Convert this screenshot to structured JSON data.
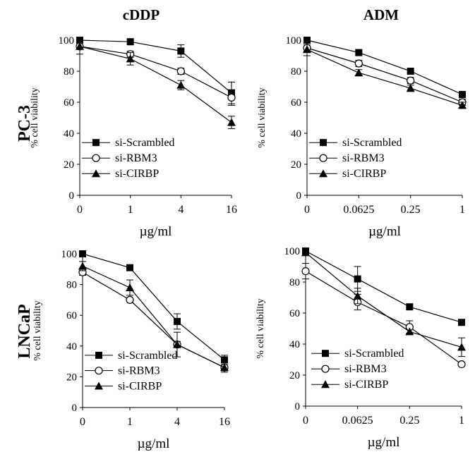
{
  "chart_data": [
    {
      "type": "line",
      "title": "cDDP",
      "row_label": "PC-3",
      "xlabel": "µg/ml",
      "ylabel": "% cell viability",
      "categories": [
        "0",
        "1",
        "4",
        "16"
      ],
      "ylim": [
        0,
        100
      ],
      "yticks": [
        0,
        20,
        40,
        60,
        80,
        100
      ],
      "legend": "bottom-left",
      "series": [
        {
          "name": "si-Scrambled",
          "marker": "square",
          "values": [
            100,
            99,
            93,
            66
          ],
          "errors": [
            1,
            1,
            4,
            7
          ]
        },
        {
          "name": "si-RBM3",
          "marker": "circle",
          "values": [
            96,
            91,
            80,
            63
          ],
          "errors": [
            1,
            2,
            2,
            5
          ]
        },
        {
          "name": "si-CIRBP",
          "marker": "triangle",
          "values": [
            96,
            88,
            71,
            47
          ],
          "errors": [
            5,
            4,
            3,
            4
          ]
        }
      ]
    },
    {
      "type": "line",
      "title": "ADM",
      "row_label": "",
      "xlabel": "µg/ml",
      "ylabel": "% cell viability",
      "categories": [
        "0",
        "0.0625",
        "0.25",
        "1"
      ],
      "ylim": [
        0,
        100
      ],
      "yticks": [
        0,
        20,
        40,
        60,
        80,
        100
      ],
      "legend": "bottom-left",
      "series": [
        {
          "name": "si-Scrambled",
          "marker": "square",
          "values": [
            100,
            92,
            80,
            65
          ],
          "errors": [
            1,
            1,
            1,
            1
          ]
        },
        {
          "name": "si-RBM3",
          "marker": "circle",
          "values": [
            95,
            85,
            74,
            60
          ],
          "errors": [
            2,
            2,
            2,
            2
          ]
        },
        {
          "name": "si-CIRBP",
          "marker": "triangle",
          "values": [
            94,
            79,
            69,
            58
          ],
          "errors": [
            4,
            2,
            2,
            2
          ]
        }
      ]
    },
    {
      "type": "line",
      "title": "",
      "row_label": "LNCaP",
      "xlabel": "µg/ml",
      "ylabel": "% cell viability",
      "categories": [
        "0",
        "1",
        "4",
        "16"
      ],
      "ylim": [
        0,
        100
      ],
      "yticks": [
        0,
        20,
        40,
        60,
        80,
        100
      ],
      "legend": "bottom-left",
      "series": [
        {
          "name": "si-Scrambled",
          "marker": "square",
          "values": [
            100,
            91,
            56,
            31
          ],
          "errors": [
            1,
            1,
            5,
            3
          ]
        },
        {
          "name": "si-RBM3",
          "marker": "circle",
          "values": [
            88,
            70,
            41,
            26
          ],
          "errors": [
            2,
            1,
            2,
            2
          ]
        },
        {
          "name": "si-CIRBP",
          "marker": "triangle",
          "values": [
            92,
            78,
            41,
            26
          ],
          "errors": [
            3,
            5,
            8,
            3
          ]
        }
      ]
    },
    {
      "type": "line",
      "title": "",
      "row_label": "",
      "xlabel": "µg/ml",
      "ylabel": "% cell viability",
      "categories": [
        "0",
        "0.0625",
        "0.25",
        "1"
      ],
      "ylim": [
        0,
        100
      ],
      "yticks": [
        0,
        20,
        40,
        60,
        80,
        100
      ],
      "legend": "bottom-left",
      "series": [
        {
          "name": "si-Scrambled",
          "marker": "square",
          "values": [
            100,
            82,
            64,
            54
          ],
          "errors": [
            1,
            8,
            1,
            1
          ]
        },
        {
          "name": "si-RBM3",
          "marker": "circle",
          "values": [
            87,
            67,
            51,
            27
          ],
          "errors": [
            5,
            5,
            4,
            1
          ]
        },
        {
          "name": "si-CIRBP",
          "marker": "triangle",
          "values": [
            99,
            71,
            48,
            38
          ],
          "errors": [
            1,
            5,
            1,
            6
          ]
        }
      ]
    }
  ]
}
